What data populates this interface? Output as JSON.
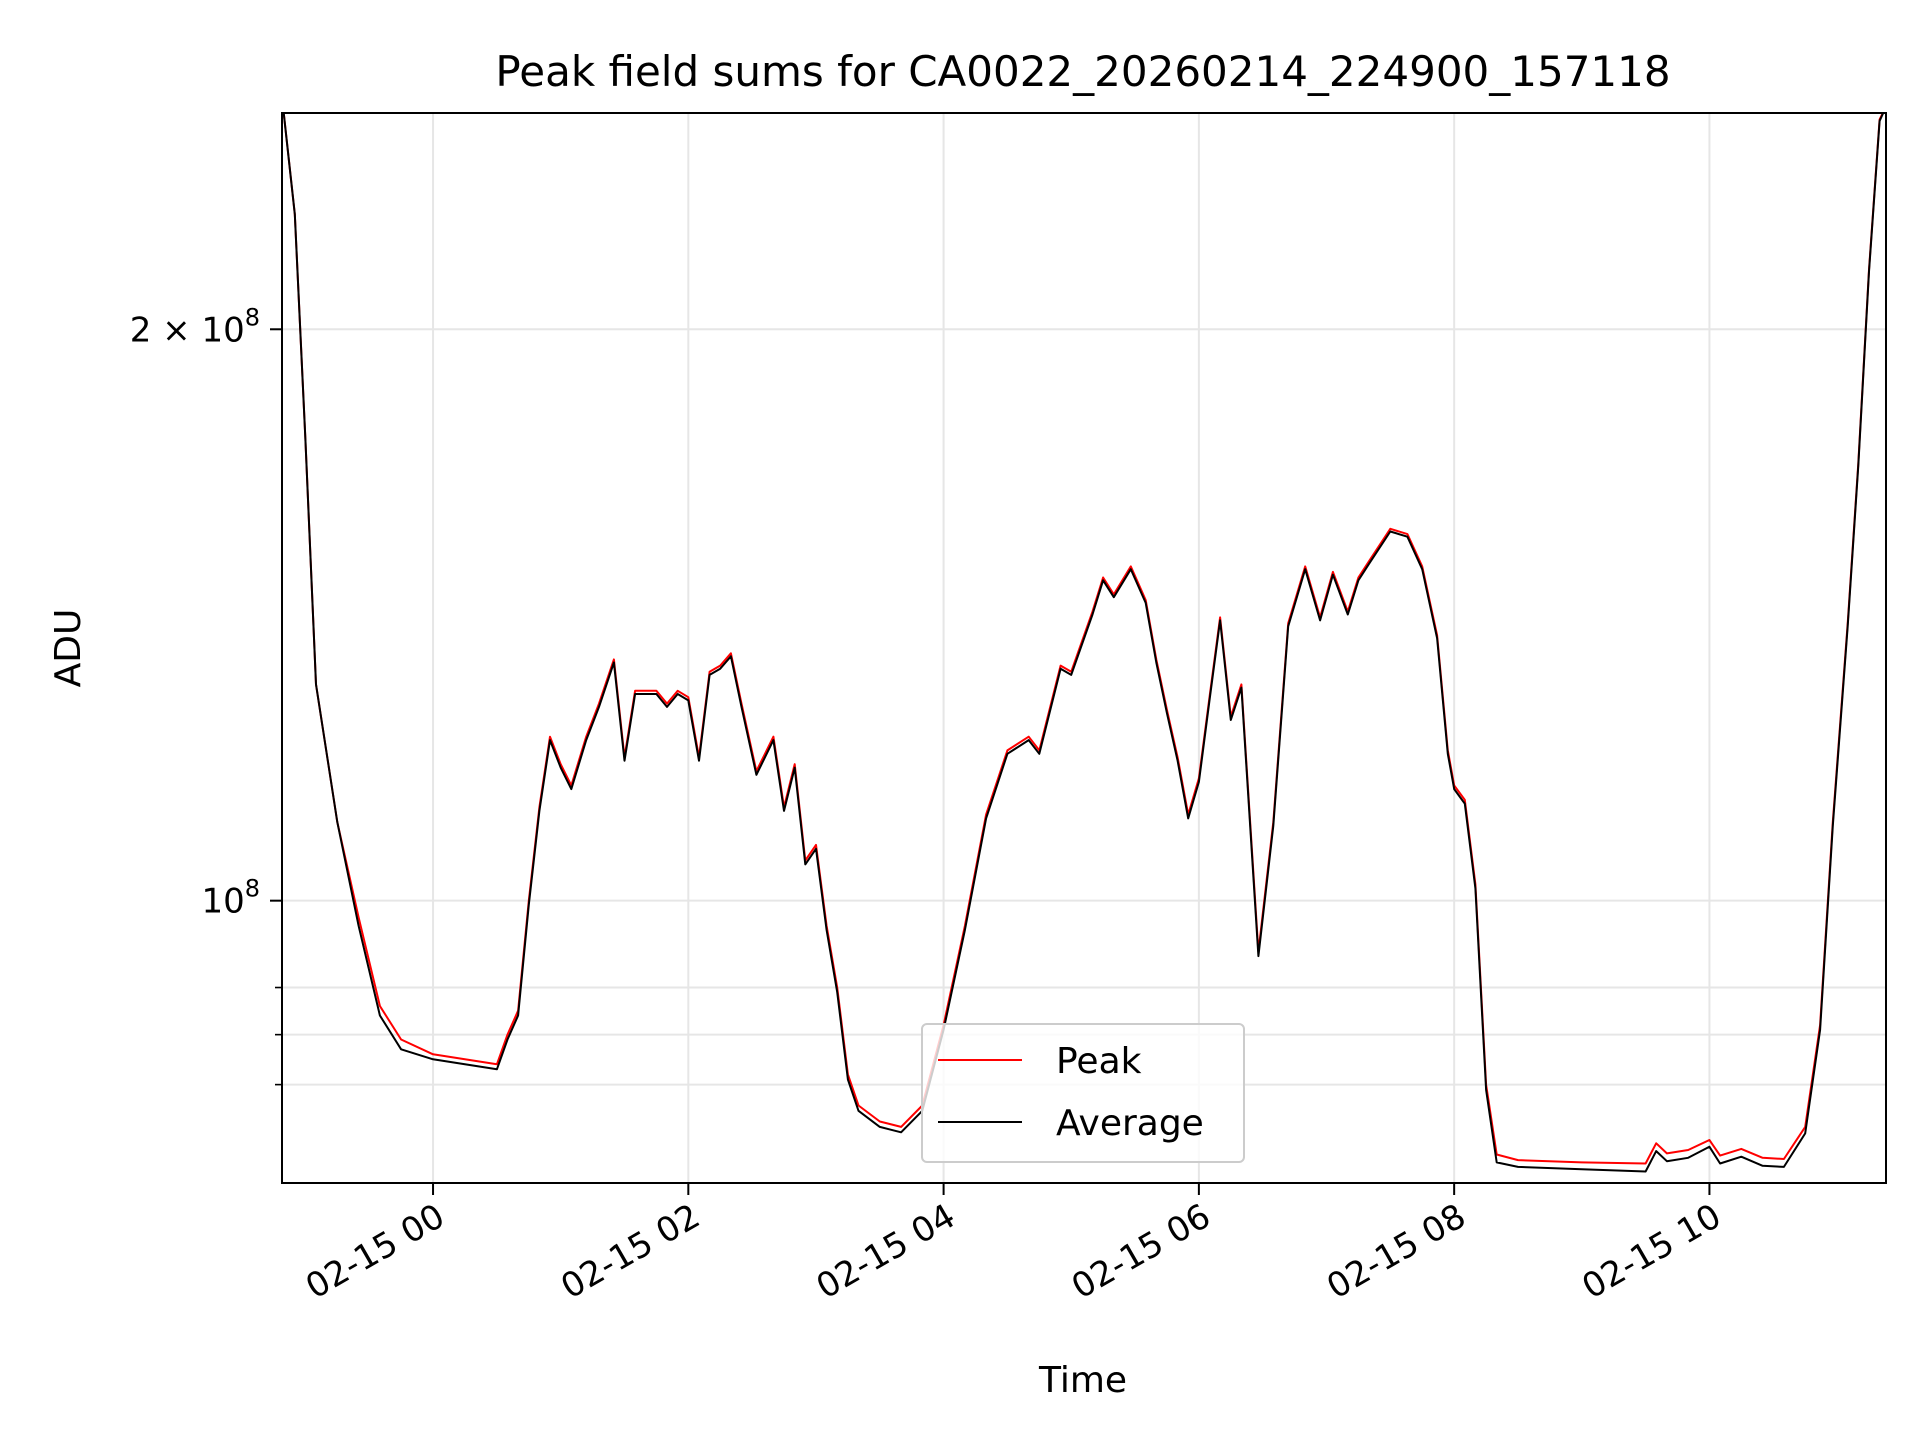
{
  "chart_data": {
    "type": "line",
    "title": "Peak field sums for CA0022_20260214_224900_157118",
    "xlabel": "Time",
    "ylabel": "ADU",
    "x_scale": "time",
    "y_scale": "log",
    "xlim": [
      "2026-02-14 22:49",
      "2026-02-15 11:23"
    ],
    "ylim": [
      71000000,
      260000000
    ],
    "grid": true,
    "legend": "lower-center",
    "x_ticks": [
      {
        "value": "2026-02-15 00:00",
        "label": "02-15 00"
      },
      {
        "value": "2026-02-15 02:00",
        "label": "02-15 02"
      },
      {
        "value": "2026-02-15 04:00",
        "label": "02-15 04"
      },
      {
        "value": "2026-02-15 06:00",
        "label": "02-15 06"
      },
      {
        "value": "2026-02-15 08:00",
        "label": "02-15 08"
      },
      {
        "value": "2026-02-15 10:00",
        "label": "02-15 10"
      }
    ],
    "y_ticks_major": [
      {
        "value": 100000000,
        "base": "10",
        "exp": "8",
        "coef": ""
      },
      {
        "value": 200000000,
        "base": "10",
        "exp": "8",
        "coef": "2"
      }
    ],
    "y_ticks_minor": [
      80000000,
      85000000,
      90000000
    ],
    "series": [
      {
        "name": "Peak",
        "color": "#ff0000",
        "points": [
          [
            "2026-02-14 22:49",
            265000000
          ],
          [
            "2026-02-14 22:55",
            230000000
          ],
          [
            "2026-02-14 23:00",
            175000000
          ],
          [
            "2026-02-14 23:05",
            130000000
          ],
          [
            "2026-02-14 23:15",
            110000000
          ],
          [
            "2026-02-14 23:25",
            98000000
          ],
          [
            "2026-02-14 23:35",
            88000000
          ],
          [
            "2026-02-14 23:45",
            84500000
          ],
          [
            "2026-02-15 00:00",
            83000000
          ],
          [
            "2026-02-15 00:15",
            82500000
          ],
          [
            "2026-02-15 00:30",
            82000000
          ],
          [
            "2026-02-15 00:35",
            85000000
          ],
          [
            "2026-02-15 00:40",
            87500000
          ],
          [
            "2026-02-15 00:45",
            100000000
          ],
          [
            "2026-02-15 00:50",
            112000000
          ],
          [
            "2026-02-15 00:55",
            122000000
          ],
          [
            "2026-02-15 01:00",
            118000000
          ],
          [
            "2026-02-15 01:05",
            115000000
          ],
          [
            "2026-02-15 01:12",
            122000000
          ],
          [
            "2026-02-15 01:18",
            127000000
          ],
          [
            "2026-02-15 01:25",
            134000000
          ],
          [
            "2026-02-15 01:30",
            119000000
          ],
          [
            "2026-02-15 01:35",
            129000000
          ],
          [
            "2026-02-15 01:45",
            129000000
          ],
          [
            "2026-02-15 01:50",
            127000000
          ],
          [
            "2026-02-15 01:55",
            129000000
          ],
          [
            "2026-02-15 02:00",
            128000000
          ],
          [
            "2026-02-15 02:05",
            119000000
          ],
          [
            "2026-02-15 02:10",
            132000000
          ],
          [
            "2026-02-15 02:15",
            133000000
          ],
          [
            "2026-02-15 02:20",
            135000000
          ],
          [
            "2026-02-15 02:25",
            127000000
          ],
          [
            "2026-02-15 02:32",
            117000000
          ],
          [
            "2026-02-15 02:40",
            122000000
          ],
          [
            "2026-02-15 02:45",
            112000000
          ],
          [
            "2026-02-15 02:50",
            118000000
          ],
          [
            "2026-02-15 02:55",
            105000000
          ],
          [
            "2026-02-15 03:00",
            107000000
          ],
          [
            "2026-02-15 03:05",
            97000000
          ],
          [
            "2026-02-15 03:10",
            90000000
          ],
          [
            "2026-02-15 03:15",
            81000000
          ],
          [
            "2026-02-15 03:20",
            78000000
          ],
          [
            "2026-02-15 03:30",
            76500000
          ],
          [
            "2026-02-15 03:40",
            76000000
          ],
          [
            "2026-02-15 03:50",
            78000000
          ],
          [
            "2026-02-15 04:00",
            86000000
          ],
          [
            "2026-02-15 04:10",
            97000000
          ],
          [
            "2026-02-15 04:20",
            111000000
          ],
          [
            "2026-02-15 04:30",
            120000000
          ],
          [
            "2026-02-15 04:40",
            122000000
          ],
          [
            "2026-02-15 04:45",
            120000000
          ],
          [
            "2026-02-15 04:55",
            133000000
          ],
          [
            "2026-02-15 05:00",
            132000000
          ],
          [
            "2026-02-15 05:10",
            142000000
          ],
          [
            "2026-02-15 05:15",
            148000000
          ],
          [
            "2026-02-15 05:20",
            145000000
          ],
          [
            "2026-02-15 05:28",
            150000000
          ],
          [
            "2026-02-15 05:35",
            144000000
          ],
          [
            "2026-02-15 05:40",
            134000000
          ],
          [
            "2026-02-15 05:45",
            126000000
          ],
          [
            "2026-02-15 05:50",
            119000000
          ],
          [
            "2026-02-15 05:55",
            111000000
          ],
          [
            "2026-02-15 06:00",
            116000000
          ],
          [
            "2026-02-15 06:05",
            128000000
          ],
          [
            "2026-02-15 06:10",
            141000000
          ],
          [
            "2026-02-15 06:15",
            125000000
          ],
          [
            "2026-02-15 06:20",
            130000000
          ],
          [
            "2026-02-15 06:28",
            94000000
          ],
          [
            "2026-02-15 06:35",
            110000000
          ],
          [
            "2026-02-15 06:42",
            140000000
          ],
          [
            "2026-02-15 06:50",
            150000000
          ],
          [
            "2026-02-15 06:57",
            141000000
          ],
          [
            "2026-02-15 07:03",
            149000000
          ],
          [
            "2026-02-15 07:10",
            142000000
          ],
          [
            "2026-02-15 07:15",
            148000000
          ],
          [
            "2026-02-15 07:20",
            151000000
          ],
          [
            "2026-02-15 07:30",
            157000000
          ],
          [
            "2026-02-15 07:38",
            156000000
          ],
          [
            "2026-02-15 07:45",
            150000000
          ],
          [
            "2026-02-15 07:52",
            138000000
          ],
          [
            "2026-02-15 07:57",
            120000000
          ],
          [
            "2026-02-15 08:00",
            115000000
          ],
          [
            "2026-02-15 08:05",
            113000000
          ],
          [
            "2026-02-15 08:10",
            102000000
          ],
          [
            "2026-02-15 08:15",
            80000000
          ],
          [
            "2026-02-15 08:20",
            73500000
          ],
          [
            "2026-02-15 08:30",
            73000000
          ],
          [
            "2026-02-15 09:00",
            72800000
          ],
          [
            "2026-02-15 09:30",
            72700000
          ],
          [
            "2026-02-15 09:35",
            74500000
          ],
          [
            "2026-02-15 09:40",
            73600000
          ],
          [
            "2026-02-15 09:50",
            73900000
          ],
          [
            "2026-02-15 10:00",
            74800000
          ],
          [
            "2026-02-15 10:05",
            73400000
          ],
          [
            "2026-02-15 10:15",
            74000000
          ],
          [
            "2026-02-15 10:25",
            73200000
          ],
          [
            "2026-02-15 10:35",
            73100000
          ],
          [
            "2026-02-15 10:45",
            76000000
          ],
          [
            "2026-02-15 10:52",
            86000000
          ],
          [
            "2026-02-15 10:58",
            110000000
          ],
          [
            "2026-02-15 11:05",
            140000000
          ],
          [
            "2026-02-15 11:10",
            170000000
          ],
          [
            "2026-02-15 11:15",
            215000000
          ],
          [
            "2026-02-15 11:20",
            258000000
          ],
          [
            "2026-02-15 11:23",
            262000000
          ]
        ]
      },
      {
        "name": "Average",
        "color": "#000000",
        "points": [
          [
            "2026-02-14 22:49",
            265000000
          ],
          [
            "2026-02-14 22:55",
            230000000
          ],
          [
            "2026-02-14 23:00",
            175000000
          ],
          [
            "2026-02-14 23:05",
            130000000
          ],
          [
            "2026-02-14 23:15",
            110000000
          ],
          [
            "2026-02-14 23:25",
            97000000
          ],
          [
            "2026-02-14 23:35",
            87000000
          ],
          [
            "2026-02-14 23:45",
            83500000
          ],
          [
            "2026-02-15 00:00",
            82500000
          ],
          [
            "2026-02-15 00:15",
            82000000
          ],
          [
            "2026-02-15 00:30",
            81500000
          ],
          [
            "2026-02-15 00:35",
            84500000
          ],
          [
            "2026-02-15 00:40",
            87000000
          ],
          [
            "2026-02-15 00:45",
            99500000
          ],
          [
            "2026-02-15 00:50",
            111500000
          ],
          [
            "2026-02-15 00:55",
            121500000
          ],
          [
            "2026-02-15 01:00",
            117500000
          ],
          [
            "2026-02-15 01:05",
            114500000
          ],
          [
            "2026-02-15 01:12",
            121500000
          ],
          [
            "2026-02-15 01:18",
            126500000
          ],
          [
            "2026-02-15 01:25",
            133500000
          ],
          [
            "2026-02-15 01:30",
            118500000
          ],
          [
            "2026-02-15 01:35",
            128500000
          ],
          [
            "2026-02-15 01:45",
            128500000
          ],
          [
            "2026-02-15 01:50",
            126500000
          ],
          [
            "2026-02-15 01:55",
            128500000
          ],
          [
            "2026-02-15 02:00",
            127500000
          ],
          [
            "2026-02-15 02:05",
            118500000
          ],
          [
            "2026-02-15 02:10",
            131500000
          ],
          [
            "2026-02-15 02:15",
            132500000
          ],
          [
            "2026-02-15 02:20",
            134500000
          ],
          [
            "2026-02-15 02:25",
            126500000
          ],
          [
            "2026-02-15 02:32",
            116500000
          ],
          [
            "2026-02-15 02:40",
            121500000
          ],
          [
            "2026-02-15 02:45",
            111500000
          ],
          [
            "2026-02-15 02:50",
            117500000
          ],
          [
            "2026-02-15 02:55",
            104500000
          ],
          [
            "2026-02-15 03:00",
            106500000
          ],
          [
            "2026-02-15 03:05",
            96500000
          ],
          [
            "2026-02-15 03:10",
            89500000
          ],
          [
            "2026-02-15 03:15",
            80500000
          ],
          [
            "2026-02-15 03:20",
            77500000
          ],
          [
            "2026-02-15 03:30",
            76000000
          ],
          [
            "2026-02-15 03:40",
            75500000
          ],
          [
            "2026-02-15 03:50",
            77500000
          ],
          [
            "2026-02-15 04:00",
            85500000
          ],
          [
            "2026-02-15 04:10",
            96500000
          ],
          [
            "2026-02-15 04:20",
            110500000
          ],
          [
            "2026-02-15 04:30",
            119500000
          ],
          [
            "2026-02-15 04:40",
            121500000
          ],
          [
            "2026-02-15 04:45",
            119500000
          ],
          [
            "2026-02-15 04:55",
            132500000
          ],
          [
            "2026-02-15 05:00",
            131500000
          ],
          [
            "2026-02-15 05:10",
            141500000
          ],
          [
            "2026-02-15 05:15",
            147500000
          ],
          [
            "2026-02-15 05:20",
            144500000
          ],
          [
            "2026-02-15 05:28",
            149500000
          ],
          [
            "2026-02-15 05:35",
            143500000
          ],
          [
            "2026-02-15 05:40",
            133500000
          ],
          [
            "2026-02-15 05:45",
            125500000
          ],
          [
            "2026-02-15 05:50",
            118500000
          ],
          [
            "2026-02-15 05:55",
            110500000
          ],
          [
            "2026-02-15 06:00",
            115500000
          ],
          [
            "2026-02-15 06:05",
            127500000
          ],
          [
            "2026-02-15 06:10",
            140500000
          ],
          [
            "2026-02-15 06:15",
            124500000
          ],
          [
            "2026-02-15 06:20",
            129500000
          ],
          [
            "2026-02-15 06:28",
            93500000
          ],
          [
            "2026-02-15 06:35",
            109500000
          ],
          [
            "2026-02-15 06:42",
            139500000
          ],
          [
            "2026-02-15 06:50",
            149500000
          ],
          [
            "2026-02-15 06:57",
            140500000
          ],
          [
            "2026-02-15 07:03",
            148500000
          ],
          [
            "2026-02-15 07:10",
            141500000
          ],
          [
            "2026-02-15 07:15",
            147500000
          ],
          [
            "2026-02-15 07:20",
            150500000
          ],
          [
            "2026-02-15 07:30",
            156500000
          ],
          [
            "2026-02-15 07:38",
            155500000
          ],
          [
            "2026-02-15 07:45",
            149500000
          ],
          [
            "2026-02-15 07:52",
            137500000
          ],
          [
            "2026-02-15 07:57",
            119500000
          ],
          [
            "2026-02-15 08:00",
            114500000
          ],
          [
            "2026-02-15 08:05",
            112500000
          ],
          [
            "2026-02-15 08:10",
            101500000
          ],
          [
            "2026-02-15 08:15",
            79500000
          ],
          [
            "2026-02-15 08:20",
            72800000
          ],
          [
            "2026-02-15 08:30",
            72400000
          ],
          [
            "2026-02-15 09:00",
            72200000
          ],
          [
            "2026-02-15 09:30",
            72000000
          ],
          [
            "2026-02-15 09:35",
            73800000
          ],
          [
            "2026-02-15 09:40",
            72900000
          ],
          [
            "2026-02-15 09:50",
            73200000
          ],
          [
            "2026-02-15 10:00",
            74200000
          ],
          [
            "2026-02-15 10:05",
            72700000
          ],
          [
            "2026-02-15 10:15",
            73300000
          ],
          [
            "2026-02-15 10:25",
            72500000
          ],
          [
            "2026-02-15 10:35",
            72400000
          ],
          [
            "2026-02-15 10:45",
            75400000
          ],
          [
            "2026-02-15 10:52",
            85500000
          ],
          [
            "2026-02-15 10:58",
            109500000
          ],
          [
            "2026-02-15 11:05",
            139500000
          ],
          [
            "2026-02-15 11:10",
            169500000
          ],
          [
            "2026-02-15 11:15",
            214500000
          ],
          [
            "2026-02-15 11:20",
            257500000
          ],
          [
            "2026-02-15 11:23",
            262000000
          ]
        ]
      }
    ]
  }
}
